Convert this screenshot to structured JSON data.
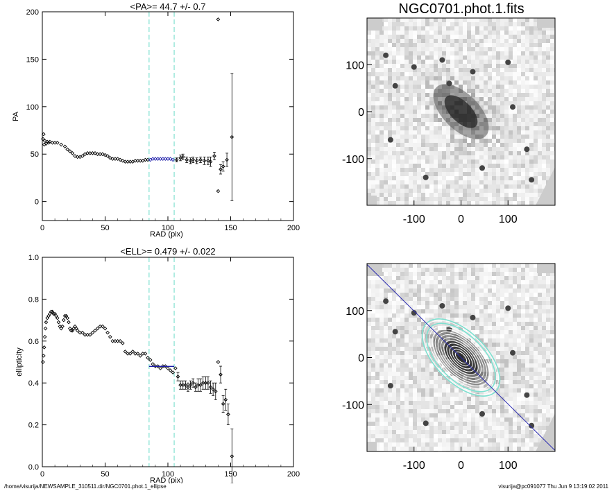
{
  "footer": {
    "left": "/home/visurija/NEWSAMPLE_310511.dir/NGC0701.phot.1_ellipse",
    "right": "visurija@pc091077  Thu Jun  9 13:19:02 2011"
  },
  "chart_data": [
    {
      "type": "scatter",
      "title": "<PA>=  44.7 +/-   0.7",
      "xlabel": "RAD (pix)",
      "ylabel": "PA",
      "xlim": [
        0,
        200
      ],
      "ylim": [
        -20,
        200
      ],
      "xticks": [
        0,
        50,
        100,
        150,
        200
      ],
      "yticks": [
        0,
        50,
        100,
        150,
        200
      ],
      "vlines": [
        85,
        105
      ],
      "colors": {
        "points": "#000000",
        "fit": "#1a1aa8",
        "vline": "#7fe0d0"
      },
      "series": [
        {
          "points": [
            [
              0.5,
              66
            ],
            [
              1,
              71
            ],
            [
              1.5,
              60
            ],
            [
              2,
              64
            ],
            [
              3,
              61
            ],
            [
              4,
              63
            ],
            [
              5,
              62
            ],
            [
              6,
              63
            ],
            [
              8,
              62
            ],
            [
              10,
              62
            ],
            [
              12,
              62
            ],
            [
              15,
              60
            ],
            [
              18,
              58
            ],
            [
              20,
              55
            ],
            [
              22,
              53
            ],
            [
              24,
              51
            ],
            [
              26,
              48
            ],
            [
              28,
              47
            ],
            [
              30,
              47
            ],
            [
              32,
              48
            ],
            [
              34,
              50
            ],
            [
              36,
              51
            ],
            [
              38,
              51
            ],
            [
              40,
              51
            ],
            [
              42,
              51
            ],
            [
              44,
              50
            ],
            [
              46,
              50
            ],
            [
              48,
              50
            ],
            [
              50,
              49
            ],
            [
              52,
              48
            ],
            [
              54,
              46
            ],
            [
              56,
              45
            ],
            [
              58,
              45
            ],
            [
              60,
              45
            ],
            [
              62,
              44
            ],
            [
              64,
              43
            ],
            [
              66,
              42
            ],
            [
              68,
              42
            ],
            [
              70,
              42
            ],
            [
              72,
              42
            ],
            [
              74,
              43
            ],
            [
              76,
              43
            ],
            [
              78,
              43
            ],
            [
              80,
              43
            ],
            [
              82,
              44
            ],
            [
              84,
              44
            ]
          ]
        },
        {
          "name": "",
          "points": [
            [
              86,
              44
            ],
            [
              88,
              45
            ],
            [
              90,
              45
            ],
            [
              92,
              45
            ],
            [
              94,
              45
            ],
            [
              96,
              45
            ],
            [
              98,
              45
            ],
            [
              100,
              45
            ],
            [
              102,
              45
            ],
            [
              104,
              44
            ]
          ]
        },
        {
          "points": [
            [
              107,
              44
            ],
            [
              110,
              46
            ],
            [
              112,
              47
            ],
            [
              115,
              44
            ],
            [
              118,
              43
            ],
            [
              120,
              44
            ],
            [
              123,
              43
            ],
            [
              126,
              44
            ],
            [
              129,
              43
            ],
            [
              132,
              43
            ],
            [
              134,
              42
            ],
            [
              137,
              48
            ],
            [
              140,
              11
            ],
            [
              140,
              192
            ],
            [
              142,
              34
            ],
            [
              144,
              37
            ],
            [
              147,
              44
            ],
            [
              151,
              68
            ]
          ],
          "errors": [
            [
              107,
              2
            ],
            [
              110,
              3
            ],
            [
              112,
              3
            ],
            [
              115,
              3
            ],
            [
              118,
              3
            ],
            [
              120,
              3
            ],
            [
              123,
              3
            ],
            [
              126,
              3
            ],
            [
              129,
              4
            ],
            [
              132,
              4
            ],
            [
              134,
              5
            ],
            [
              137,
              4
            ],
            [
              140,
              0
            ],
            [
              140,
              0
            ],
            [
              142,
              5
            ],
            [
              144,
              5
            ],
            [
              147,
              7
            ],
            [
              151,
              67
            ]
          ]
        }
      ]
    },
    {
      "type": "scatter",
      "title": "<ELL>= 0.479 +/-   0.022",
      "xlabel": "RAD (pix)",
      "ylabel": "ellipticity",
      "xlim": [
        0,
        200
      ],
      "ylim": [
        0,
        1
      ],
      "xticks": [
        0,
        50,
        100,
        150,
        200
      ],
      "yticks": [
        "0.0",
        "0.2",
        "0.4",
        "0.6",
        "0.8",
        "1.0"
      ],
      "vlines": [
        85,
        105
      ],
      "fit_line": {
        "x": [
          85,
          105
        ],
        "y": 0.479
      },
      "colors": {
        "points": "#000000",
        "fit": "#1a1aa8",
        "vline": "#7fe0d0"
      },
      "series": [
        {
          "points": [
            [
              0.5,
              0.5
            ],
            [
              1,
              0.53
            ],
            [
              1.5,
              0.57
            ],
            [
              2,
              0.62
            ],
            [
              2.5,
              0.66
            ],
            [
              3,
              0.69
            ],
            [
              4,
              0.71
            ],
            [
              5,
              0.72
            ],
            [
              6,
              0.73
            ],
            [
              7,
              0.74
            ],
            [
              8,
              0.74
            ],
            [
              9,
              0.73
            ],
            [
              10,
              0.73
            ],
            [
              11,
              0.72
            ],
            [
              12,
              0.71
            ],
            [
              13,
              0.69
            ],
            [
              14,
              0.67
            ],
            [
              15,
              0.66
            ],
            [
              16,
              0.67
            ],
            [
              17,
              0.7
            ],
            [
              18,
              0.72
            ],
            [
              19,
              0.72
            ],
            [
              20,
              0.71
            ],
            [
              21,
              0.69
            ],
            [
              22,
              0.66
            ],
            [
              23,
              0.65
            ],
            [
              24,
              0.65
            ],
            [
              25,
              0.66
            ],
            [
              26,
              0.67
            ],
            [
              27,
              0.66
            ],
            [
              28,
              0.65
            ],
            [
              30,
              0.64
            ],
            [
              32,
              0.64
            ],
            [
              34,
              0.63
            ],
            [
              36,
              0.63
            ],
            [
              38,
              0.63
            ],
            [
              40,
              0.64
            ],
            [
              42,
              0.65
            ],
            [
              44,
              0.66
            ],
            [
              46,
              0.67
            ],
            [
              48,
              0.67
            ],
            [
              50,
              0.66
            ],
            [
              52,
              0.64
            ],
            [
              54,
              0.62
            ],
            [
              56,
              0.6
            ],
            [
              58,
              0.6
            ],
            [
              60,
              0.6
            ],
            [
              62,
              0.6
            ],
            [
              64,
              0.59
            ],
            [
              66,
              0.55
            ],
            [
              68,
              0.54
            ],
            [
              70,
              0.54
            ],
            [
              72,
              0.55
            ],
            [
              74,
              0.54
            ],
            [
              76,
              0.54
            ],
            [
              78,
              0.53
            ],
            [
              80,
              0.54
            ],
            [
              82,
              0.54
            ],
            [
              84,
              0.52
            ],
            [
              86,
              0.51
            ],
            [
              88,
              0.49
            ],
            [
              90,
              0.48
            ],
            [
              92,
              0.48
            ],
            [
              94,
              0.47
            ],
            [
              96,
              0.48
            ],
            [
              98,
              0.48
            ],
            [
              100,
              0.47
            ],
            [
              102,
              0.46
            ],
            [
              104,
              0.45
            ],
            [
              106,
              0.47
            ]
          ]
        },
        {
          "points": [
            [
              108,
              0.43
            ],
            [
              110,
              0.39
            ],
            [
              112,
              0.39
            ],
            [
              114,
              0.39
            ],
            [
              116,
              0.38
            ],
            [
              118,
              0.39
            ],
            [
              120,
              0.4
            ],
            [
              122,
              0.38
            ],
            [
              124,
              0.39
            ],
            [
              126,
              0.39
            ],
            [
              128,
              0.4
            ],
            [
              130,
              0.4
            ],
            [
              132,
              0.4
            ],
            [
              134,
              0.38
            ],
            [
              136,
              0.37
            ],
            [
              138,
              0.36
            ],
            [
              140,
              0.5
            ],
            [
              142,
              0.44
            ],
            [
              144,
              0.3
            ],
            [
              146,
              0.32
            ],
            [
              148,
              0.25
            ],
            [
              151,
              0.05
            ]
          ],
          "errors": [
            [
              108,
              0.02
            ],
            [
              110,
              0.02
            ],
            [
              112,
              0.02
            ],
            [
              114,
              0.02
            ],
            [
              116,
              0.02
            ],
            [
              118,
              0.02
            ],
            [
              120,
              0.02
            ],
            [
              122,
              0.02
            ],
            [
              124,
              0.03
            ],
            [
              126,
              0.03
            ],
            [
              128,
              0.03
            ],
            [
              130,
              0.03
            ],
            [
              132,
              0.03
            ],
            [
              134,
              0.03
            ],
            [
              136,
              0.03
            ],
            [
              138,
              0.04
            ],
            [
              140,
              0.0
            ],
            [
              142,
              0.04
            ],
            [
              144,
              0.04
            ],
            [
              146,
              0.05
            ],
            [
              148,
              0.05
            ],
            [
              151,
              0.13
            ]
          ]
        }
      ]
    },
    {
      "type": "heatmap",
      "title": "NGC0701.phot.1.fits",
      "xlim": [
        -200,
        200
      ],
      "ylim": [
        -200,
        200
      ],
      "xticks": [
        "-100",
        "0",
        "100"
      ],
      "yticks": [
        "100",
        "0",
        "-100"
      ],
      "galaxy_pa_deg": 44.7,
      "galaxy_ellipticity": 0.479
    },
    {
      "type": "heatmap",
      "title": "",
      "xlim": [
        -200,
        200
      ],
      "ylim": [
        -200,
        200
      ],
      "xticks": [
        "-100",
        "0",
        "100"
      ],
      "yticks": [
        "100",
        "0",
        "-100"
      ],
      "galaxy_pa_deg": 44.7,
      "galaxy_ellipticity": 0.479,
      "colors": {
        "contours": "#ffffff",
        "fit_ellipse": "#7fe0d0",
        "major_axis": "#2a2ab0"
      }
    }
  ]
}
